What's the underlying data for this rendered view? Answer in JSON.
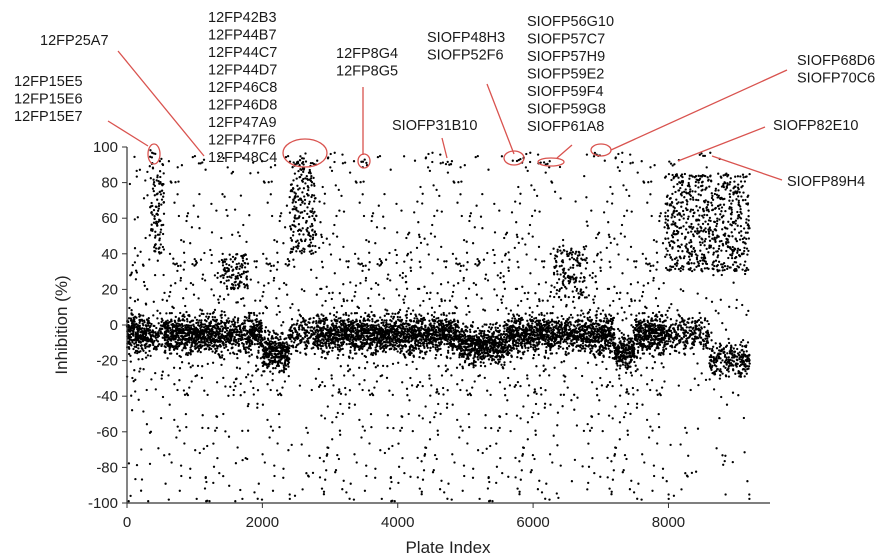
{
  "chart_data": {
    "type": "scatter",
    "title": "",
    "xlabel": "Plate Index",
    "ylabel": "Inhibition (%)",
    "xlim": [
      0,
      9500
    ],
    "ylim": [
      -100,
      100
    ],
    "xticks": [
      0,
      2000,
      4000,
      6000,
      8000
    ],
    "yticks": [
      100,
      80,
      60,
      40,
      20,
      0,
      -20,
      -40,
      -60,
      -80,
      -100
    ],
    "point_color": "#000000",
    "annotation_color": "#d9534f",
    "grid": false,
    "legend": "none",
    "n_points_approx": 9200,
    "bulk_distribution": "most plate indices scatter around -5 % (range about -30 to 15) with sparse outliers spanning -100 to 100",
    "dense_high_clusters": [
      {
        "x_range": [
          2400,
          2800
        ],
        "y_range": [
          40,
          92
        ]
      },
      {
        "x_range": [
          350,
          550
        ],
        "y_range": [
          40,
          92
        ]
      },
      {
        "x_range": [
          7950,
          9200
        ],
        "y_range": [
          30,
          85
        ]
      }
    ],
    "highlighted_hits": [
      {
        "group": "12FP15E5 / 12FP15E6 / 12FP15E7",
        "x": 380,
        "y": 95
      },
      {
        "group": "12FP25A7",
        "x": 1100,
        "y": 92
      },
      {
        "group": "12FP42B3 – 12FP48C4",
        "x": 2600,
        "y": 95
      },
      {
        "group": "12FP8G4 / 12FP8G5",
        "x": 3500,
        "y": 92
      },
      {
        "group": "SIOFP31B10",
        "x": 4750,
        "y": 91
      },
      {
        "group": "SIOFP48H3 / SIOFP52F6",
        "x": 5800,
        "y": 92
      },
      {
        "group": "SIOFP56G10 – SIOFP61A8",
        "x": 6200,
        "y": 90
      },
      {
        "group": "SIOFP68D6 / SIOFP70C6",
        "x": 6950,
        "y": 96
      },
      {
        "group": "SIOFP82E10",
        "x": 8050,
        "y": 91
      },
      {
        "group": "SIOFP89H4",
        "x": 8500,
        "y": 96
      }
    ],
    "annotations": [
      {
        "lines": [
          "12FP15E5",
          "12FP15E6",
          "12FP15E7"
        ]
      },
      {
        "lines": [
          "12FP25A7"
        ]
      },
      {
        "lines": [
          "12FP42B3",
          "12FP44B7",
          "12FP44C7",
          "12FP44D7",
          "12FP46C8",
          "12FP46D8",
          "12FP47A9",
          "12FP47F6",
          "12FP48C4"
        ]
      },
      {
        "lines": [
          "12FP8G4",
          "12FP8G5"
        ]
      },
      {
        "lines": [
          "SIOFP31B10"
        ]
      },
      {
        "lines": [
          "SIOFP48H3",
          "SIOFP52F6"
        ]
      },
      {
        "lines": [
          "SIOFP56G10",
          "SIOFP57C7",
          "SIOFP57H9",
          "SIOFP59E2",
          "SIOFP59F4",
          "SIOFP59G8",
          "SIOFP61A8"
        ]
      },
      {
        "lines": [
          "SIOFP68D6",
          "SIOFP70C6"
        ]
      },
      {
        "lines": [
          "SIOFP82E10"
        ]
      },
      {
        "lines": [
          "SIOFP89H4"
        ]
      }
    ]
  }
}
